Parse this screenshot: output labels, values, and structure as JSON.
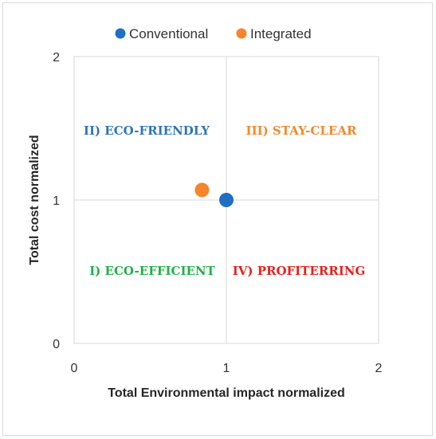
{
  "chart_data": {
    "type": "scatter",
    "xlabel": "Total Environmental impact normalized",
    "ylabel": "Total cost normalized",
    "xlim": [
      0,
      2
    ],
    "ylim": [
      0,
      2
    ],
    "x_ticks": [
      "0",
      "1",
      "2"
    ],
    "y_ticks": [
      "0",
      "1",
      "2"
    ],
    "grid": true,
    "legend_position": "top",
    "series": [
      {
        "name": "Conventional",
        "color": "#1f6fc5",
        "points": [
          {
            "x": 1.0,
            "y": 1.0
          }
        ]
      },
      {
        "name": "Integrated",
        "color": "#f5842a",
        "points": [
          {
            "x": 0.84,
            "y": 1.07
          }
        ]
      }
    ],
    "annotations": [
      {
        "text": "II) ECO-FRIENDLY",
        "color": "#2e75b6"
      },
      {
        "text": "III) STAY-CLEAR",
        "color": "#f08a30"
      },
      {
        "text": "I) ECO-EFFICIENT",
        "color": "#20b04a"
      },
      {
        "text": "IV) PROFITERRING",
        "color": "#e8201e"
      }
    ]
  }
}
